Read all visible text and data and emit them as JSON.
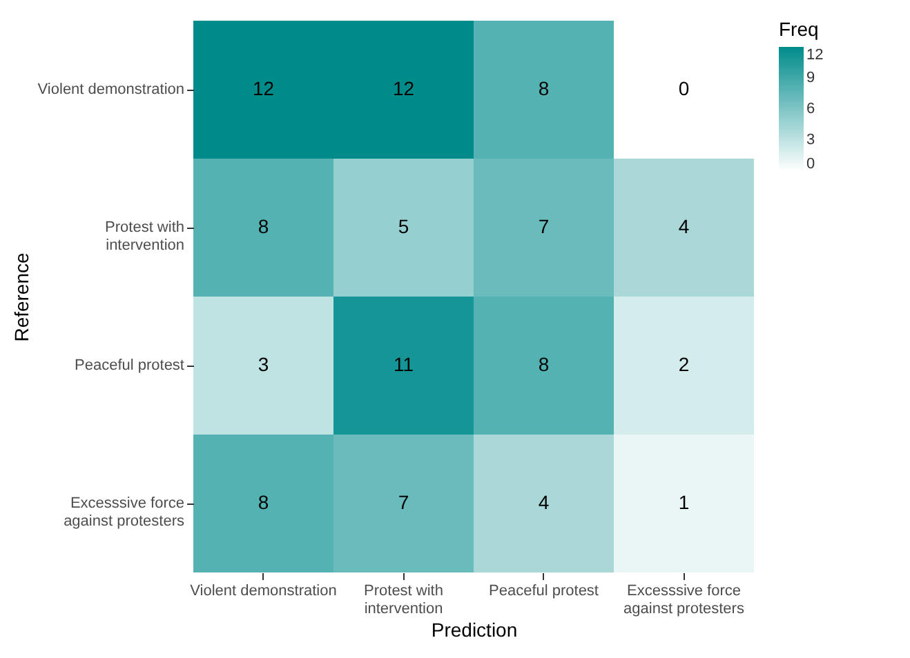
{
  "chart_data": {
    "type": "heatmap",
    "xlabel": "Prediction",
    "ylabel": "Reference",
    "legend_title": "Freq",
    "categories": [
      "Violent demonstration",
      "Protest with\nintervention",
      "Peaceful protest",
      "Excesssive force\nagainst protesters"
    ],
    "y_categories": [
      "Violent demonstration",
      "Protest with\nintervention",
      "Peaceful protest",
      "Excesssive force\nagainst protesters"
    ],
    "cells": [
      [
        12,
        12,
        8,
        0
      ],
      [
        8,
        5,
        7,
        4
      ],
      [
        3,
        11,
        8,
        2
      ],
      [
        8,
        7,
        4,
        1
      ]
    ],
    "clim": [
      0,
      12
    ],
    "cticks": [
      0,
      3,
      6,
      9,
      12
    ],
    "data_labels": true
  }
}
